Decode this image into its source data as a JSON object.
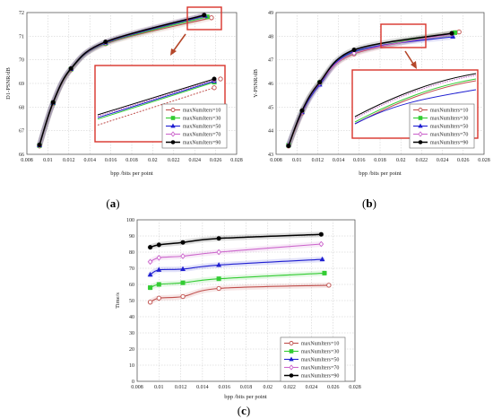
{
  "chart_data": [
    {
      "panel": "(a)",
      "type": "line",
      "xlabel": "bpp  /bits per point",
      "ylabel": "D1-PSNR/dB",
      "xlim": [
        0.008,
        0.028
      ],
      "ylim": [
        66,
        72
      ],
      "xticks": [
        "0.008",
        "0.01",
        "0.012",
        "0.014",
        "0.016",
        "0.018",
        "0.02",
        "0.022",
        "0.024",
        "0.026",
        "0.028"
      ],
      "yticks": [
        "66",
        "67",
        "68",
        "69",
        "70",
        "71",
        "72"
      ],
      "grid": true,
      "legend": "bottom-right",
      "inset": true,
      "series": [
        {
          "name": "maxNumIters=10",
          "color": "#c0504d",
          "marker": "circle-open",
          "x": [
            0.0092,
            0.0105,
            0.0122,
            0.0155,
            0.0256
          ],
          "y": [
            66.35,
            68.15,
            69.58,
            70.68,
            71.78
          ]
        },
        {
          "name": "maxNumIters=30",
          "color": "#33cc33",
          "marker": "square",
          "x": [
            0.0092,
            0.0105,
            0.0122,
            0.0155,
            0.0252
          ],
          "y": [
            66.37,
            68.17,
            69.6,
            70.7,
            71.82
          ]
        },
        {
          "name": "maxNumIters=50",
          "color": "#1f1fd1",
          "marker": "triangle",
          "x": [
            0.0092,
            0.0105,
            0.0122,
            0.0155,
            0.025
          ],
          "y": [
            66.38,
            68.18,
            69.61,
            70.72,
            71.86
          ]
        },
        {
          "name": "maxNumIters=70",
          "color": "#cc66cc",
          "marker": "diamond-open",
          "x": [
            0.0092,
            0.0105,
            0.0122,
            0.0155,
            0.0249
          ],
          "y": [
            66.39,
            68.19,
            69.62,
            70.74,
            71.88
          ]
        },
        {
          "name": "maxNumIters=90",
          "color": "#000000",
          "marker": "circle",
          "x": [
            0.0092,
            0.0105,
            0.0122,
            0.0155,
            0.0249
          ],
          "y": [
            66.4,
            68.2,
            69.63,
            70.76,
            71.89
          ]
        }
      ]
    },
    {
      "panel": "(b)",
      "type": "line",
      "xlabel": "bpp  /bits per point",
      "ylabel": "Y-PSNR/dB",
      "xlim": [
        0.008,
        0.028
      ],
      "ylim": [
        43,
        49
      ],
      "xticks": [
        "0.008",
        "0.01",
        "0.012",
        "0.014",
        "0.016",
        "0.018",
        "0.02",
        "0.022",
        "0.024",
        "0.026",
        "0.028"
      ],
      "yticks": [
        "43",
        "44",
        "45",
        "46",
        "47",
        "48",
        "49"
      ],
      "grid": true,
      "legend": "bottom-right",
      "inset": true,
      "series": [
        {
          "name": "maxNumIters=10",
          "color": "#c0504d",
          "marker": "circle-open",
          "x": [
            0.0092,
            0.0105,
            0.0122,
            0.0155,
            0.0256
          ],
          "y": [
            43.35,
            44.75,
            46.0,
            47.25,
            48.18
          ]
        },
        {
          "name": "maxNumIters=30",
          "color": "#33cc33",
          "marker": "square",
          "x": [
            0.0092,
            0.0105,
            0.0122,
            0.0155,
            0.0252
          ],
          "y": [
            43.38,
            44.8,
            46.03,
            47.3,
            48.15
          ]
        },
        {
          "name": "maxNumIters=50",
          "color": "#1f1fd1",
          "marker": "triangle",
          "x": [
            0.0092,
            0.0105,
            0.0122,
            0.0155,
            0.025
          ],
          "y": [
            43.4,
            44.78,
            45.95,
            47.35,
            47.98
          ]
        },
        {
          "name": "maxNumIters=70",
          "color": "#cc66cc",
          "marker": "diamond-open",
          "x": [
            0.0092,
            0.0105,
            0.0122,
            0.0155,
            0.0249
          ],
          "y": [
            43.38,
            44.82,
            46.02,
            47.28,
            48.1
          ]
        },
        {
          "name": "maxNumIters=90",
          "color": "#000000",
          "marker": "circle",
          "x": [
            0.0092,
            0.0105,
            0.0122,
            0.0155,
            0.0249
          ],
          "y": [
            43.36,
            44.85,
            46.05,
            47.42,
            48.12
          ]
        }
      ]
    },
    {
      "panel": "(c)",
      "type": "line",
      "xlabel": "bpp  /bits per point",
      "ylabel": "Time/s",
      "xlim": [
        0.008,
        0.028
      ],
      "ylim": [
        0,
        100
      ],
      "xticks": [
        "0.008",
        "0.01",
        "0.012",
        "0.014",
        "0.016",
        "0.018",
        "0.02",
        "0.022",
        "0.024",
        "0.026",
        "0.028"
      ],
      "yticks": [
        "0",
        "10",
        "20",
        "30",
        "40",
        "50",
        "60",
        "70",
        "80",
        "90",
        "100"
      ],
      "grid": true,
      "legend": "bottom-right",
      "inset": false,
      "series": [
        {
          "name": "maxNumIters=10",
          "color": "#c0504d",
          "marker": "circle-open",
          "x": [
            0.0092,
            0.01,
            0.0122,
            0.0155,
            0.0256
          ],
          "y": [
            49,
            51.5,
            52.5,
            57.5,
            59.5
          ]
        },
        {
          "name": "maxNumIters=30",
          "color": "#33cc33",
          "marker": "square",
          "x": [
            0.0092,
            0.01,
            0.0122,
            0.0155,
            0.0252
          ],
          "y": [
            58,
            60,
            61,
            63.5,
            67
          ]
        },
        {
          "name": "maxNumIters=50",
          "color": "#1f1fd1",
          "marker": "triangle",
          "x": [
            0.0092,
            0.01,
            0.0122,
            0.0155,
            0.025
          ],
          "y": [
            66,
            69,
            69.5,
            72,
            75.5
          ]
        },
        {
          "name": "maxNumIters=70",
          "color": "#cc66cc",
          "marker": "diamond-open",
          "x": [
            0.0092,
            0.01,
            0.0122,
            0.0155,
            0.0249
          ],
          "y": [
            74,
            76.5,
            77.5,
            80,
            85
          ]
        },
        {
          "name": "maxNumIters=90",
          "color": "#000000",
          "marker": "circle",
          "x": [
            0.0092,
            0.01,
            0.0122,
            0.0155,
            0.0249
          ],
          "y": [
            83,
            84.5,
            86,
            88.5,
            91
          ]
        }
      ]
    }
  ],
  "zoom_box_color": "#d9342b"
}
